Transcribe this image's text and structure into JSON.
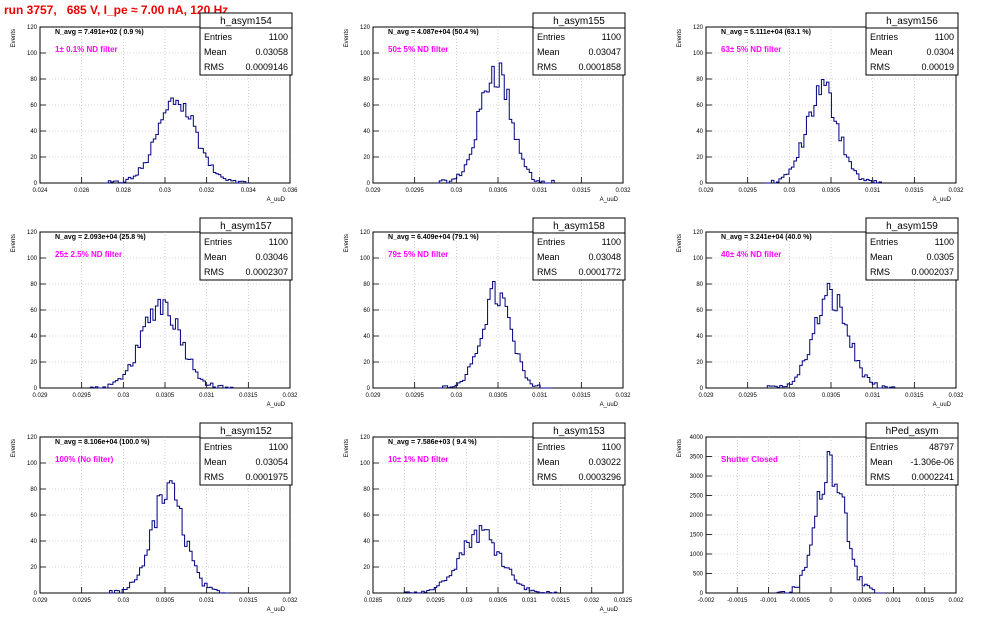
{
  "page_title": "run 3757,   685 V, I_pe ≈ 7.00 nA, 120 Hz",
  "colors": {
    "histogram": "#000080",
    "annotation": "#ff00ff",
    "title": "#ee0000",
    "grid": "#b0b0b0"
  },
  "stat_labels": {
    "entries": "Entries",
    "mean": "Mean",
    "rms": "RMS"
  },
  "chart_data": [
    {
      "type": "bar",
      "name": "h_asym154",
      "navg": "N_avg = 7.491e+02 ( 0.9 %)",
      "filter": "1± 0.1% ND filter",
      "stats": {
        "entries": "1100",
        "mean": "0.03058",
        "rms": "0.0009146"
      },
      "ylabel": "Events",
      "xlabel": "A_uuD",
      "xlim": [
        0.024,
        0.036
      ],
      "ylim": [
        0,
        120
      ],
      "xticks": [
        0.024,
        0.026,
        0.028,
        0.03,
        0.032,
        0.034,
        0.036
      ],
      "xtick_labels": [
        "0.024",
        "0.026",
        "0.028",
        "0.03",
        "0.032",
        "0.034",
        "0.036"
      ],
      "yticks": [
        0,
        20,
        40,
        60,
        80,
        100,
        120
      ],
      "ytick_labels": [
        "0",
        "20",
        "40",
        "60",
        "80",
        "100",
        "120"
      ],
      "bins": {
        "center": 0.03058,
        "rms": 0.0009146,
        "peak": 64,
        "width": 0.00012
      }
    },
    {
      "type": "bar",
      "name": "h_asym155",
      "navg": "N_avg = 4.087e+04 (50.4 %)",
      "filter": "50± 5% ND filter",
      "stats": {
        "entries": "1100",
        "mean": "0.03047",
        "rms": "0.0001858"
      },
      "ylabel": "Events",
      "xlabel": "A_uuD",
      "xlim": [
        0.029,
        0.032
      ],
      "ylim": [
        0,
        120
      ],
      "xticks": [
        0.029,
        0.0295,
        0.03,
        0.0305,
        0.031,
        0.0315,
        0.032
      ],
      "xtick_labels": [
        "0.029",
        "0.0295",
        "0.03",
        "0.0305",
        "0.031",
        "0.0315",
        "0.032"
      ],
      "yticks": [
        0,
        20,
        40,
        60,
        80,
        100,
        120
      ],
      "ytick_labels": [
        "0",
        "20",
        "40",
        "60",
        "80",
        "100",
        "120"
      ],
      "bins": {
        "center": 0.03047,
        "rms": 0.0001858,
        "peak": 88,
        "width": 3e-05
      }
    },
    {
      "type": "bar",
      "name": "h_asym156",
      "navg": "N_avg = 5.111e+04 (63.1 %)",
      "filter": "63± 5% ND filter",
      "stats": {
        "entries": "1100",
        "mean": "0.0304",
        "rms": "0.00019"
      },
      "ylabel": "Events",
      "xlabel": "A_uuD",
      "xlim": [
        0.029,
        0.032
      ],
      "ylim": [
        0,
        120
      ],
      "xticks": [
        0.029,
        0.0295,
        0.03,
        0.0305,
        0.031,
        0.0315,
        0.032
      ],
      "xtick_labels": [
        "0.029",
        "0.0295",
        "0.03",
        "0.0305",
        "0.031",
        "0.0315",
        "0.032"
      ],
      "yticks": [
        0,
        20,
        40,
        60,
        80,
        100,
        120
      ],
      "ytick_labels": [
        "0",
        "20",
        "40",
        "60",
        "80",
        "100",
        "120"
      ],
      "bins": {
        "center": 0.0304,
        "rms": 0.00019,
        "peak": 72,
        "width": 3e-05
      }
    },
    {
      "type": "bar",
      "name": "h_asym157",
      "navg": "N_avg = 2.093e+04 (25.8 %)",
      "filter": "25± 2.5% ND filter",
      "stats": {
        "entries": "1100",
        "mean": "0.03046",
        "rms": "0.0002307"
      },
      "ylabel": "Events",
      "xlabel": "A_uuD",
      "xlim": [
        0.029,
        0.032
      ],
      "ylim": [
        0,
        120
      ],
      "xticks": [
        0.029,
        0.0295,
        0.03,
        0.0305,
        0.031,
        0.0315,
        0.032
      ],
      "xtick_labels": [
        "0.029",
        "0.0295",
        "0.03",
        "0.0305",
        "0.031",
        "0.0315",
        "0.032"
      ],
      "yticks": [
        0,
        20,
        40,
        60,
        80,
        100,
        120
      ],
      "ytick_labels": [
        "0",
        "20",
        "40",
        "60",
        "80",
        "100",
        "120"
      ],
      "bins": {
        "center": 0.03046,
        "rms": 0.0002307,
        "peak": 66,
        "width": 3e-05
      }
    },
    {
      "type": "bar",
      "name": "h_asym158",
      "navg": "N_avg = 6.409e+04 (79.1 %)",
      "filter": "79± 5% ND filter",
      "stats": {
        "entries": "1100",
        "mean": "0.03048",
        "rms": "0.0001772"
      },
      "ylabel": "Events",
      "xlabel": "A_uuD",
      "xlim": [
        0.029,
        0.032
      ],
      "ylim": [
        0,
        120
      ],
      "xticks": [
        0.029,
        0.0295,
        0.03,
        0.0305,
        0.031,
        0.0315,
        0.032
      ],
      "xtick_labels": [
        "0.029",
        "0.0295",
        "0.03",
        "0.0305",
        "0.031",
        "0.0315",
        "0.032"
      ],
      "yticks": [
        0,
        20,
        40,
        60,
        80,
        100,
        120
      ],
      "ytick_labels": [
        "0",
        "20",
        "40",
        "60",
        "80",
        "100",
        "120"
      ],
      "bins": {
        "center": 0.03048,
        "rms": 0.0001772,
        "peak": 72,
        "width": 3e-05
      }
    },
    {
      "type": "bar",
      "name": "h_asym159",
      "navg": "N_avg = 3.241e+04 (40.0 %)",
      "filter": "40± 4% ND filter",
      "stats": {
        "entries": "1100",
        "mean": "0.0305",
        "rms": "0.0002037"
      },
      "ylabel": "Events",
      "xlabel": "A_uuD",
      "xlim": [
        0.029,
        0.032
      ],
      "ylim": [
        0,
        120
      ],
      "xticks": [
        0.029,
        0.0295,
        0.03,
        0.0305,
        0.031,
        0.0315,
        0.032
      ],
      "xtick_labels": [
        "0.029",
        "0.0295",
        "0.03",
        "0.0305",
        "0.031",
        "0.0315",
        "0.032"
      ],
      "yticks": [
        0,
        20,
        40,
        60,
        80,
        100,
        120
      ],
      "ytick_labels": [
        "0",
        "20",
        "40",
        "60",
        "80",
        "100",
        "120"
      ],
      "bins": {
        "center": 0.0305,
        "rms": 0.0002037,
        "peak": 70,
        "width": 3e-05
      }
    },
    {
      "type": "bar",
      "name": "h_asym152",
      "navg": "N_avg = 8.106e+04 (100.0 %)",
      "filter": "100% (No filter)",
      "stats": {
        "entries": "1100",
        "mean": "0.03054",
        "rms": "0.0001975"
      },
      "ylabel": "Events",
      "xlabel": "A_uuD",
      "xlim": [
        0.029,
        0.032
      ],
      "ylim": [
        0,
        120
      ],
      "xticks": [
        0.029,
        0.0295,
        0.03,
        0.0305,
        0.031,
        0.0315,
        0.032
      ],
      "xtick_labels": [
        "0.029",
        "0.0295",
        "0.03",
        "0.0305",
        "0.031",
        "0.0315",
        "0.032"
      ],
      "yticks": [
        0,
        20,
        40,
        60,
        80,
        100,
        120
      ],
      "ytick_labels": [
        "0",
        "20",
        "40",
        "60",
        "80",
        "100",
        "120"
      ],
      "bins": {
        "center": 0.03054,
        "rms": 0.0001975,
        "peak": 77,
        "width": 3e-05
      }
    },
    {
      "type": "bar",
      "name": "h_asym153",
      "navg": "N_avg = 7.586e+03 ( 9.4 %)",
      "filter": "10± 1% ND filter",
      "stats": {
        "entries": "1100",
        "mean": "0.03022",
        "rms": "0.0003296"
      },
      "ylabel": "Events",
      "xlabel": "A_uuD",
      "xlim": [
        0.0285,
        0.0325
      ],
      "ylim": [
        0,
        120
      ],
      "xticks": [
        0.0285,
        0.029,
        0.0295,
        0.03,
        0.0305,
        0.031,
        0.0315,
        0.032,
        0.0325
      ],
      "xtick_labels": [
        "0.0285",
        "0.029",
        "0.0295",
        "0.03",
        "0.0305",
        "0.031",
        "0.0315",
        "0.032",
        "0.0325"
      ],
      "yticks": [
        0,
        20,
        40,
        60,
        80,
        100,
        120
      ],
      "ytick_labels": [
        "0",
        "20",
        "40",
        "60",
        "80",
        "100",
        "120"
      ],
      "bins": {
        "center": 0.03022,
        "rms": 0.0003296,
        "peak": 47,
        "width": 4e-05
      }
    },
    {
      "type": "bar",
      "name": "hPed_asym",
      "navg": "",
      "filter": "Shutter Closed",
      "stats": {
        "entries": "48797",
        "mean": "-1.306e-06",
        "rms": "0.0002241"
      },
      "ylabel": "Events",
      "xlabel": "",
      "xlim": [
        -0.002,
        0.002
      ],
      "ylim": [
        0,
        4000
      ],
      "xticks": [
        -0.002,
        -0.0015,
        -0.001,
        -0.0005,
        0,
        0.0005,
        0.001,
        0.0015,
        0.002
      ],
      "xtick_labels": [
        "-0.002",
        "-0.0015",
        "-0.001",
        "-0.0005",
        "0",
        "0.0005",
        "0.001",
        "0.0015",
        "0.002"
      ],
      "yticks": [
        0,
        500,
        1000,
        1500,
        2000,
        2500,
        3000,
        3500,
        4000
      ],
      "ytick_labels": [
        "0",
        "500",
        "1000",
        "1500",
        "2000",
        "2500",
        "3000",
        "3500",
        "4000"
      ],
      "bins": {
        "center": -1.306e-06,
        "rms": 0.0002241,
        "peak": 3420,
        "width": 4e-05
      }
    }
  ]
}
